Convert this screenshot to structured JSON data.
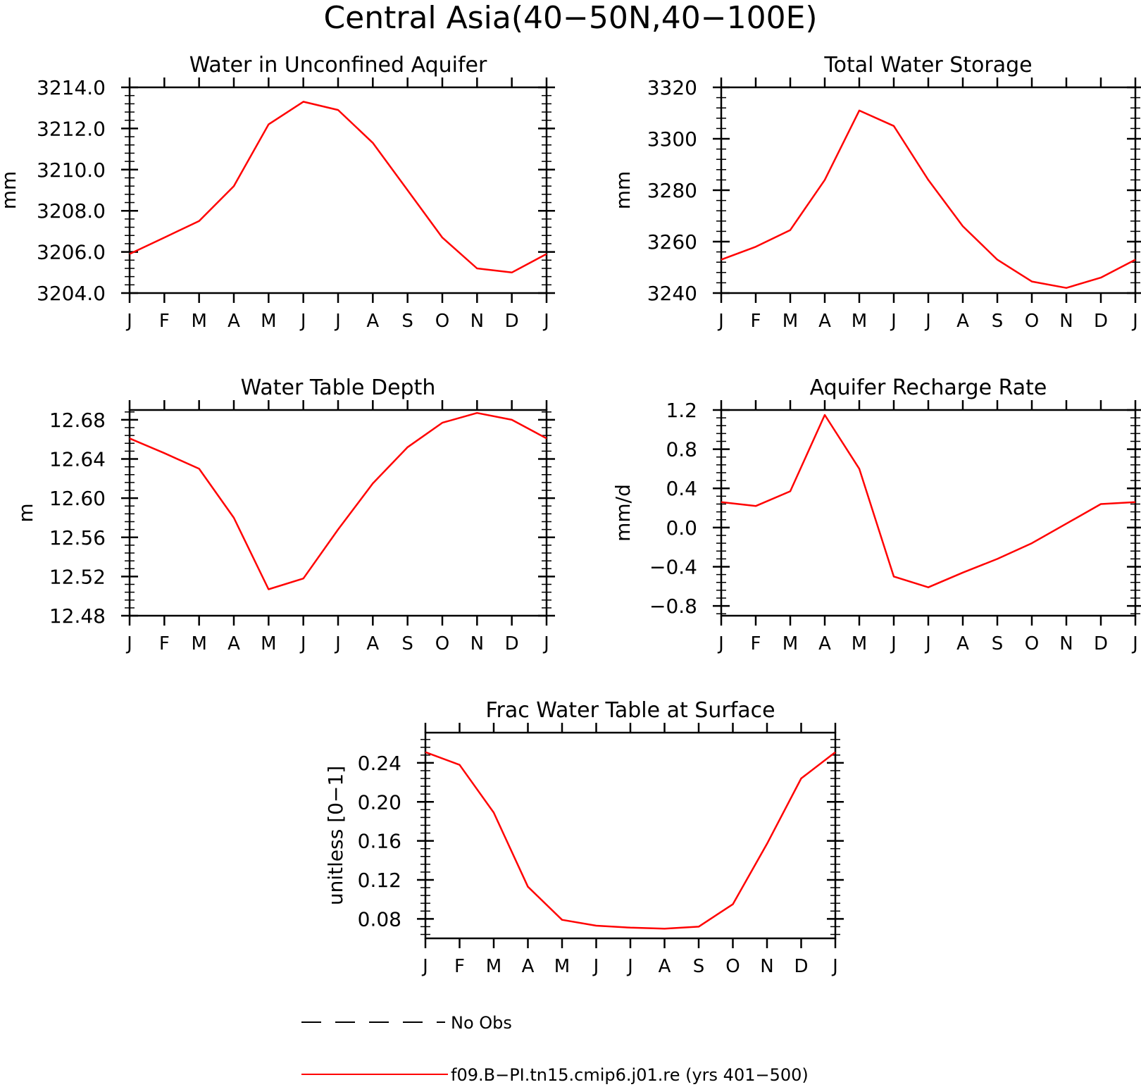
{
  "figure": {
    "title": "Central Asia(40−50N,40−100E)"
  },
  "legend": {
    "items": [
      {
        "label": "No Obs",
        "style": "dashed",
        "color": "#000000"
      },
      {
        "label": "f09.B−PI.tn15.cmip6.j01.re (yrs 401−500)",
        "style": "solid",
        "color": "#ff0000"
      }
    ]
  },
  "chart_data": [
    {
      "type": "line",
      "title": "Water in Unconfined Aquifer",
      "ylabel": "mm",
      "categories": [
        "J",
        "F",
        "M",
        "A",
        "M",
        "J",
        "J",
        "A",
        "S",
        "O",
        "N",
        "D",
        "J"
      ],
      "ylim": [
        3204.0,
        3214.0
      ],
      "yticks": [
        "3204.0",
        "3206.0",
        "3208.0",
        "3210.0",
        "3212.0",
        "3214.0"
      ],
      "series": [
        {
          "color": "#ff0000",
          "values": [
            3205.9,
            3206.7,
            3207.5,
            3209.2,
            3212.2,
            3213.3,
            3212.9,
            3211.3,
            3209.0,
            3206.7,
            3205.2,
            3205.0,
            3205.9
          ]
        }
      ]
    },
    {
      "type": "line",
      "title": "Total Water Storage",
      "ylabel": "mm",
      "categories": [
        "J",
        "F",
        "M",
        "A",
        "M",
        "J",
        "J",
        "A",
        "S",
        "O",
        "N",
        "D",
        "J"
      ],
      "ylim": [
        3240,
        3320
      ],
      "yticks": [
        "3240",
        "3260",
        "3280",
        "3300",
        "3320"
      ],
      "series": [
        {
          "color": "#ff0000",
          "values": [
            3253,
            3258,
            3264.5,
            3284,
            3311,
            3305,
            3284,
            3266,
            3253,
            3244.5,
            3242,
            3246,
            3253
          ]
        }
      ]
    },
    {
      "type": "line",
      "title": "Water Table Depth",
      "ylabel": "m",
      "categories": [
        "J",
        "F",
        "M",
        "A",
        "M",
        "J",
        "J",
        "A",
        "S",
        "O",
        "N",
        "D",
        "J"
      ],
      "ylim": [
        12.48,
        12.69
      ],
      "yticks": [
        "12.48",
        "12.52",
        "12.56",
        "12.60",
        "12.64",
        "12.68"
      ],
      "series": [
        {
          "color": "#ff0000",
          "values": [
            12.661,
            12.646,
            12.63,
            12.58,
            12.507,
            12.518,
            12.568,
            12.615,
            12.652,
            12.677,
            12.687,
            12.68,
            12.661
          ]
        }
      ]
    },
    {
      "type": "line",
      "title": "Aquifer Recharge Rate",
      "ylabel": "mm/d",
      "categories": [
        "J",
        "F",
        "M",
        "A",
        "M",
        "J",
        "J",
        "A",
        "S",
        "O",
        "N",
        "D",
        "J"
      ],
      "ylim": [
        -0.9,
        1.2
      ],
      "yticks": [
        "−0.8",
        "−0.4",
        "0.0",
        "0.4",
        "0.8",
        "1.2"
      ],
      "series": [
        {
          "color": "#ff0000",
          "values": [
            0.26,
            0.22,
            0.37,
            1.15,
            0.6,
            -0.5,
            -0.61,
            -0.46,
            -0.32,
            -0.16,
            0.04,
            0.24,
            0.26
          ]
        }
      ]
    },
    {
      "type": "line",
      "title": "Frac Water Table at Surface",
      "ylabel": "unitless [0−1]",
      "categories": [
        "J",
        "F",
        "M",
        "A",
        "M",
        "J",
        "J",
        "A",
        "S",
        "O",
        "N",
        "D",
        "J"
      ],
      "ylim": [
        0.06,
        0.271
      ],
      "yticks": [
        "0.08",
        "0.12",
        "0.16",
        "0.20",
        "0.24"
      ],
      "series": [
        {
          "color": "#ff0000",
          "values": [
            0.251,
            0.238,
            0.189,
            0.113,
            0.079,
            0.073,
            0.071,
            0.07,
            0.072,
            0.095,
            0.157,
            0.224,
            0.251
          ]
        }
      ]
    }
  ]
}
